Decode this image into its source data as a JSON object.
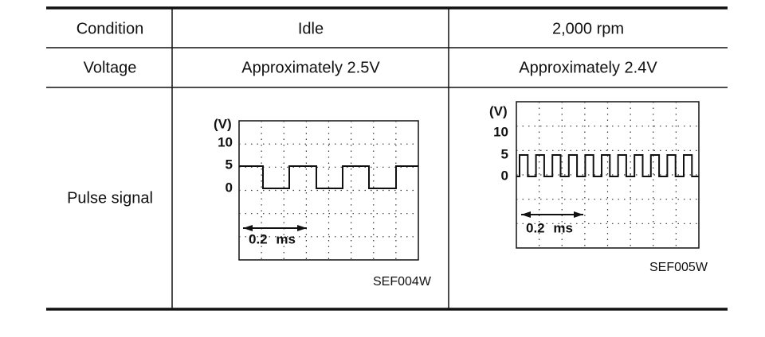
{
  "table": {
    "header": [
      "Condition",
      "Idle",
      "2,000 rpm"
    ],
    "rows": [
      [
        "Voltage",
        "Approximately 2.5V",
        "Approximately 2.4V"
      ],
      [
        "Pulse signal"
      ]
    ]
  },
  "figures": [
    {
      "y_unit": "(V)",
      "y_labels": [
        "10",
        "5",
        "0"
      ],
      "time_scale": "0.2 ms",
      "figure_id": "SEF004W"
    },
    {
      "y_unit": "(V)",
      "y_labels": [
        "10",
        "5",
        "0"
      ],
      "time_scale": "0.2 ms",
      "figure_id": "SEF005W"
    }
  ]
}
